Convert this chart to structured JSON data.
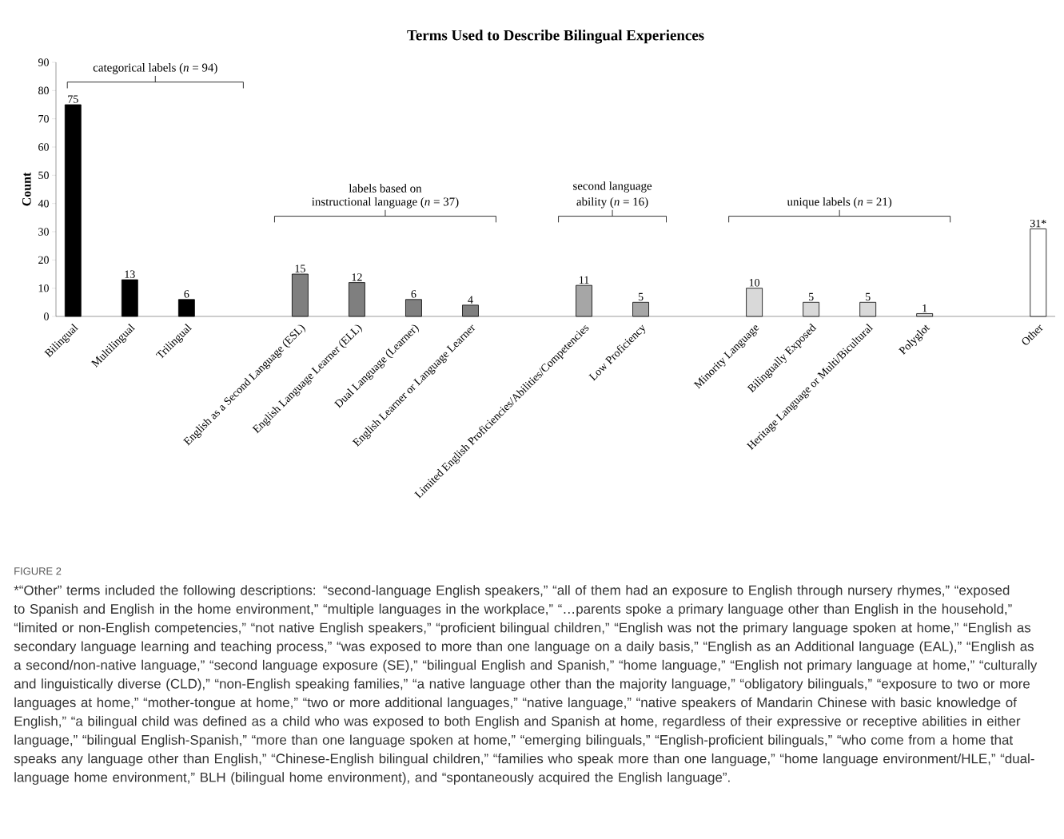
{
  "chart_data": {
    "type": "bar",
    "title": "Terms Used to Describe Bilingual Experiences",
    "ylabel": "Count",
    "categories": [
      "Bilingual",
      "Multilingual",
      "Trilingual",
      null,
      "English as a Second Language (ESL)",
      "English Language Learner (ELL)",
      "Dual Language (Learner)",
      "English Learner or Language Learner",
      null,
      "Limited English Proficiencies/Abilities/Competencies",
      "Low Proficiency",
      null,
      "Minority Language",
      "Bilingually Exposed",
      "Heritage Language or Multi/Bicultural",
      "Polyglot",
      null,
      "Other"
    ],
    "values": [
      75,
      13,
      6,
      null,
      15,
      12,
      6,
      4,
      null,
      11,
      5,
      null,
      10,
      5,
      5,
      1,
      null,
      31
    ],
    "value_labels": [
      "75",
      "13",
      "6",
      null,
      "15",
      "12",
      "6",
      "4",
      null,
      "11",
      "5",
      null,
      "10",
      "5",
      "5",
      "1",
      null,
      "31*"
    ],
    "colors": [
      "#000000",
      "#000000",
      "#000000",
      null,
      "#7f7f7f",
      "#7f7f7f",
      "#7f7f7f",
      "#7f7f7f",
      null,
      "#a6a6a6",
      "#a6a6a6",
      null,
      "#d9d9d9",
      "#d9d9d9",
      "#d9d9d9",
      "#d9d9d9",
      null,
      "#ffffff"
    ],
    "ylim": [
      0,
      90
    ],
    "yticks": [
      0,
      10,
      20,
      30,
      40,
      50,
      60,
      70,
      80,
      90
    ],
    "grid": false,
    "annotations": [
      "categorical labels (*n* = 94)",
      "labels based on",
      "instructional language (*n* = 37)",
      "second language",
      "ability (*n* = 16)",
      "unique labels (*n* = 21)",
      "FIGURE 2",
      "*“Other” terms included the following descriptions: “second-language English speakers,” “all of them had an exposure to English through nursery rhymes,” “exposed to Spanish and English in the home environment,” “multiple languages in the workplace,” “…parents spoke a primary language other than English in the household,” “limited or non-English competencies,” “not native English speakers,” “proficient bilingual children,” “English was not the primary language spoken at home,” “English as secondary language learning and teaching process,” “was exposed to more than one language on a daily basis,” “English as an Additional language (EAL),” “English as a second/non-native language,” “second language exposure (SE),” “bilingual English and Spanish,” “home language,” “English not primary language at home,” “culturally and linguistically diverse (CLD),” “non-English speaking families,” “a native language other than the majority language,” “obligatory bilinguals,” “exposure to two or more languages at home,” “mother-tongue at home,” “two or more additional languages,” “native language,” “native speakers of Mandarin Chinese with basic knowledge of English,” “a bilingual child was defined as a child who was exposed to both English and Spanish at home, regardless of their expressive or receptive abilities in either language,” “bilingual English-Spanish,” “more than one language spoken at home,” “emerging bilinguals,” “English-proficient bilinguals,” “who come from a home that speaks any language other than English,” “Chinese-English bilingual children,” “families who speak more than one language,” “home language environment/HLE,” “dual-language home environment,” BLH (bilingual home environment), and “spontaneously acquired the English language”."
    ]
  }
}
